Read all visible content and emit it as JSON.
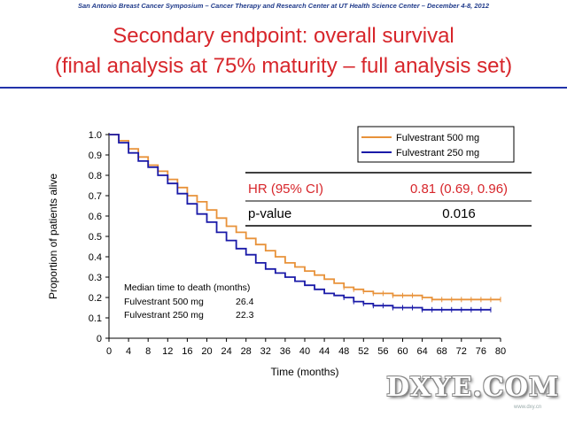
{
  "slide": {
    "header": "San Antonio Breast Cancer Symposium – Cancer Therapy and Research Center at UT Health Science Center – December 4-8, 2012",
    "title_line1": "Secondary endpoint: overall survival",
    "title_line2": "(final analysis at 75% maturity – full analysis set)",
    "accent_color": "#d7262b",
    "rule_color": "#2233aa"
  },
  "stats_table": {
    "rows": [
      {
        "label": "HR (95% CI)",
        "value": "0.81 (0.69, 0.96)",
        "color": "#d7262b"
      },
      {
        "label": "p-value",
        "value": "0.016",
        "color": "#000000"
      }
    ]
  },
  "median_box": {
    "heading": "Median time to death (months)",
    "rows": [
      {
        "label": "Fulvestrant 500 mg",
        "value": "26.4"
      },
      {
        "label": "Fulvestrant 250 mg",
        "value": "22.3"
      }
    ]
  },
  "chart_data": {
    "type": "line",
    "xlabel": "Time (months)",
    "ylabel": "Proportion of patients alive",
    "xlim": [
      0,
      80
    ],
    "ylim": [
      0,
      1.0
    ],
    "xticks": [
      0,
      4,
      8,
      12,
      16,
      20,
      24,
      28,
      32,
      36,
      40,
      44,
      48,
      52,
      56,
      60,
      64,
      68,
      72,
      76,
      80
    ],
    "yticks": [
      0,
      0.1,
      0.2,
      0.3,
      0.4,
      0.5,
      0.6,
      0.7,
      0.8,
      0.9,
      1.0
    ],
    "grid": false,
    "legend_position": "top-right",
    "series": [
      {
        "name": "Fulvestrant 500 mg",
        "color": "#e8923a",
        "x": [
          0,
          2,
          4,
          6,
          8,
          10,
          12,
          14,
          16,
          18,
          20,
          22,
          24,
          26,
          28,
          30,
          32,
          34,
          36,
          38,
          40,
          42,
          44,
          46,
          48,
          50,
          52,
          54,
          56,
          58,
          60,
          62,
          64,
          66,
          68,
          70,
          72,
          74,
          76,
          78,
          80
        ],
        "y": [
          1.0,
          0.97,
          0.93,
          0.89,
          0.85,
          0.82,
          0.78,
          0.74,
          0.7,
          0.67,
          0.63,
          0.59,
          0.55,
          0.52,
          0.49,
          0.46,
          0.43,
          0.4,
          0.37,
          0.35,
          0.33,
          0.31,
          0.29,
          0.27,
          0.25,
          0.24,
          0.23,
          0.22,
          0.22,
          0.21,
          0.21,
          0.21,
          0.2,
          0.19,
          0.19,
          0.19,
          0.19,
          0.19,
          0.19,
          0.19,
          0.19
        ]
      },
      {
        "name": "Fulvestrant 250 mg",
        "color": "#1a1aa8",
        "x": [
          0,
          2,
          4,
          6,
          8,
          10,
          12,
          14,
          16,
          18,
          20,
          22,
          24,
          26,
          28,
          30,
          32,
          34,
          36,
          38,
          40,
          42,
          44,
          46,
          48,
          50,
          52,
          54,
          56,
          58,
          60,
          62,
          64,
          66,
          68,
          70,
          72,
          74,
          76,
          78
        ],
        "y": [
          1.0,
          0.96,
          0.91,
          0.87,
          0.84,
          0.8,
          0.76,
          0.71,
          0.66,
          0.61,
          0.57,
          0.52,
          0.48,
          0.44,
          0.41,
          0.37,
          0.34,
          0.32,
          0.3,
          0.28,
          0.26,
          0.24,
          0.22,
          0.21,
          0.2,
          0.18,
          0.17,
          0.16,
          0.16,
          0.15,
          0.15,
          0.15,
          0.14,
          0.14,
          0.14,
          0.14,
          0.14,
          0.14,
          0.14,
          0.14
        ]
      }
    ]
  },
  "watermark": {
    "text": "DXYE.COM",
    "sub": "www.dxy.cn"
  }
}
